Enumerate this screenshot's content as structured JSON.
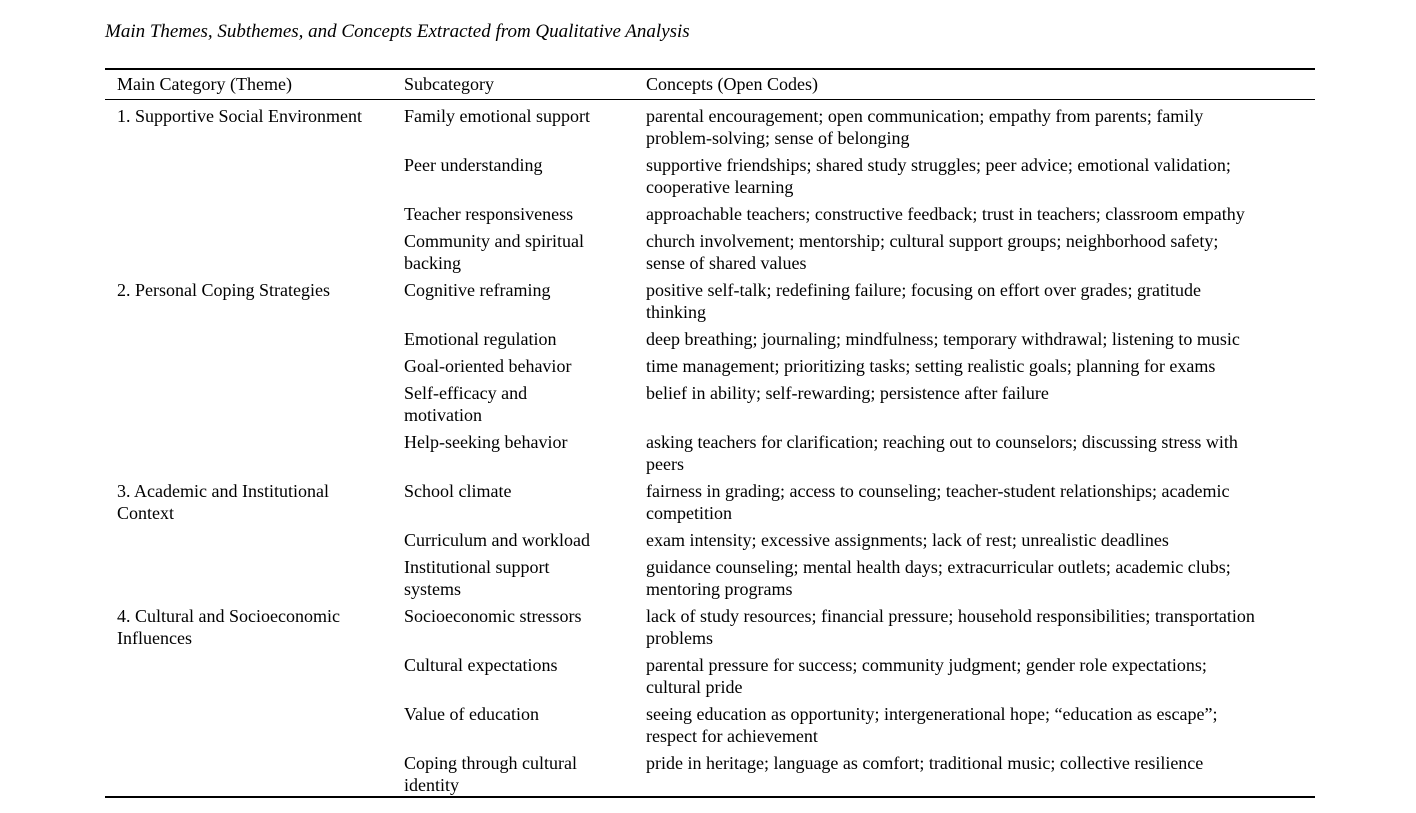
{
  "table": {
    "title": "Main Themes, Subthemes, and Concepts Extracted from Qualitative Analysis",
    "columns": [
      "Main Category (Theme)",
      "Subcategory",
      "Concepts (Open Codes)"
    ],
    "themes": [
      {
        "label": "1. Supportive Social Environment",
        "rows": [
          {
            "subcategory": "Family emotional support",
            "concepts": "parental encouragement; open communication; empathy from parents; family problem-solving; sense of belonging"
          },
          {
            "subcategory": "Peer understanding",
            "concepts": "supportive friendships; shared study struggles; peer advice; emotional validation; cooperative learning"
          },
          {
            "subcategory": "Teacher responsiveness",
            "concepts": "approachable teachers; constructive feedback; trust in teachers; classroom empathy"
          },
          {
            "subcategory": "Community and spiritual backing",
            "concepts": "church involvement; mentorship; cultural support groups; neighborhood safety; sense of shared values"
          }
        ]
      },
      {
        "label": "2. Personal Coping Strategies",
        "rows": [
          {
            "subcategory": "Cognitive reframing",
            "concepts": "positive self-talk; redefining failure; focusing on effort over grades; gratitude thinking"
          },
          {
            "subcategory": "Emotional regulation",
            "concepts": "deep breathing; journaling; mindfulness; temporary withdrawal; listening to music"
          },
          {
            "subcategory": "Goal-oriented behavior",
            "concepts": "time management; prioritizing tasks; setting realistic goals; planning for exams"
          },
          {
            "subcategory": "Self-efficacy and motivation",
            "concepts": "belief in ability; self-rewarding; persistence after failure"
          },
          {
            "subcategory": "Help-seeking behavior",
            "concepts": "asking teachers for clarification; reaching out to counselors; discussing stress with peers"
          }
        ]
      },
      {
        "label": "3. Academic and Institutional Context",
        "rows": [
          {
            "subcategory": "School climate",
            "concepts": "fairness in grading; access to counseling; teacher-student relationships; academic competition"
          },
          {
            "subcategory": "Curriculum and workload",
            "concepts": "exam intensity; excessive assignments; lack of rest; unrealistic deadlines"
          },
          {
            "subcategory": "Institutional support systems",
            "concepts": "guidance counseling; mental health days; extracurricular outlets; academic clubs; mentoring programs"
          }
        ]
      },
      {
        "label": "4. Cultural and Socioeconomic Influences",
        "rows": [
          {
            "subcategory": "Socioeconomic stressors",
            "concepts": "lack of study resources; financial pressure; household responsibilities; transportation problems"
          },
          {
            "subcategory": "Cultural expectations",
            "concepts": "parental pressure for success; community judgment; gender role expectations; cultural pride"
          },
          {
            "subcategory": "Value of education",
            "concepts": "seeing education as opportunity; intergenerational hope; “education as escape”; respect for achievement"
          },
          {
            "subcategory": "Coping through cultural identity",
            "concepts": "pride in heritage; language as comfort; traditional music; collective resilience"
          }
        ]
      }
    ]
  }
}
